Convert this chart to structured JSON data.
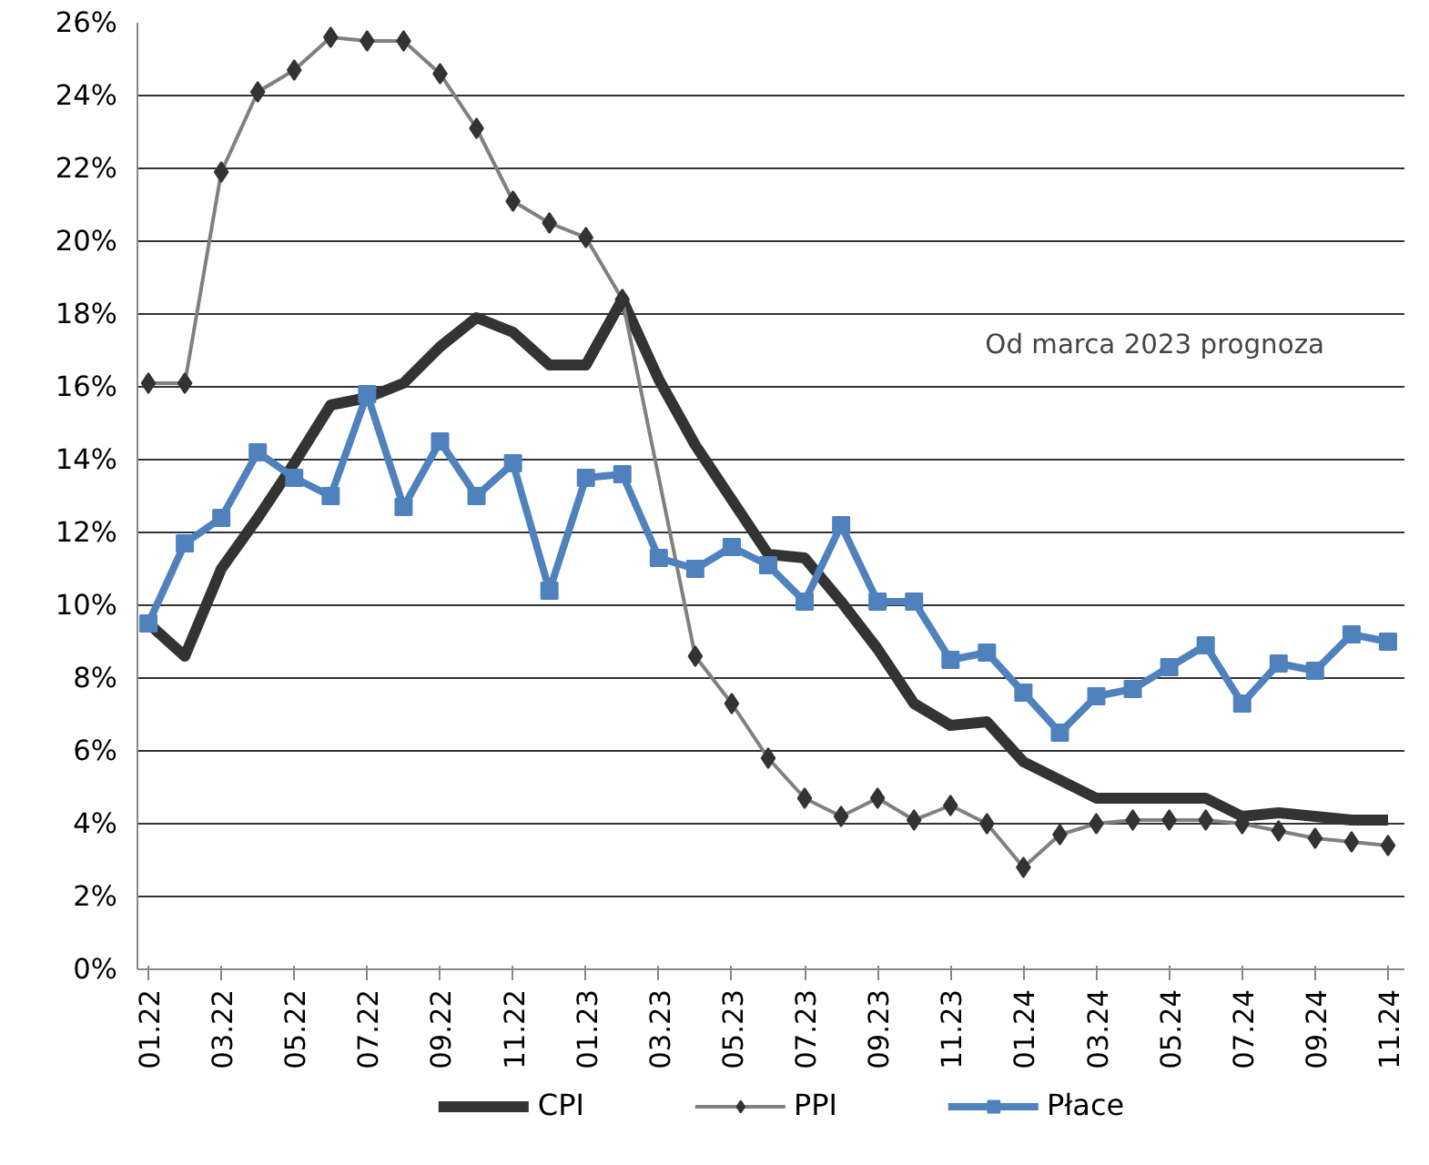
{
  "chart_data": {
    "type": "line",
    "categories": [
      "01.22",
      null,
      "03.22",
      null,
      "05.22",
      null,
      "07.22",
      null,
      "09.22",
      null,
      "11.22",
      null,
      "01.23",
      null,
      "03.23",
      null,
      "05.23",
      null,
      "07.23",
      null,
      "09.23",
      null,
      "11.23",
      null,
      "01.24",
      null,
      "03.24",
      null,
      "05.24",
      null,
      "07.24",
      null,
      "09.24",
      null,
      "11.24"
    ],
    "series": [
      {
        "name": "CPI",
        "color": "#333333",
        "marker": "none",
        "values": [
          9.5,
          8.6,
          11.0,
          12.4,
          13.9,
          15.5,
          15.7,
          16.1,
          17.1,
          17.9,
          17.5,
          16.6,
          16.6,
          18.4,
          16.2,
          14.4,
          12.9,
          11.4,
          11.3,
          10.1,
          8.8,
          7.3,
          6.7,
          6.8,
          5.7,
          5.2,
          4.7,
          4.7,
          4.7,
          4.7,
          4.2,
          4.3,
          4.2,
          4.1,
          4.1
        ]
      },
      {
        "name": "PPI",
        "color": "#808080",
        "marker": "diamond",
        "values": [
          16.1,
          16.1,
          21.9,
          24.1,
          24.7,
          25.6,
          25.5,
          25.5,
          24.6,
          23.1,
          21.1,
          20.5,
          20.1,
          18.4,
          null,
          8.6,
          7.3,
          5.8,
          4.7,
          4.2,
          4.7,
          4.1,
          4.5,
          4.0,
          2.8,
          3.7,
          4.0,
          4.1,
          4.1,
          4.1,
          4.0,
          3.8,
          3.6,
          3.5,
          3.4
        ]
      },
      {
        "name": "Płace",
        "color": "#4f81bd",
        "marker": "square",
        "values": [
          9.5,
          11.7,
          12.4,
          14.2,
          13.5,
          13.0,
          15.8,
          12.7,
          14.5,
          13.0,
          13.9,
          10.4,
          13.5,
          13.6,
          11.3,
          11.0,
          11.6,
          11.1,
          10.1,
          12.2,
          10.1,
          10.1,
          8.5,
          8.7,
          7.6,
          6.5,
          7.5,
          7.7,
          8.3,
          8.9,
          7.3,
          8.4,
          8.2,
          9.2,
          9.0
        ]
      }
    ],
    "ylim": [
      0,
      26
    ],
    "yticks": [
      {
        "value": 0,
        "label": "0%"
      },
      {
        "value": 2,
        "label": "2%"
      },
      {
        "value": 4,
        "label": "4%"
      },
      {
        "value": 6,
        "label": "6%"
      },
      {
        "value": 8,
        "label": "8%"
      },
      {
        "value": 10,
        "label": "10%"
      },
      {
        "value": 12,
        "label": "12%"
      },
      {
        "value": 14,
        "label": "14%"
      },
      {
        "value": 16,
        "label": "16%"
      },
      {
        "value": 18,
        "label": "18%"
      },
      {
        "value": 20,
        "label": "20%"
      },
      {
        "value": 22,
        "label": "22%"
      },
      {
        "value": 24,
        "label": "24%"
      },
      {
        "value": 26,
        "label": "26%"
      }
    ],
    "grid": "y",
    "legend": "bottom",
    "annotations": [
      "Od marca 2023 prognoza"
    ]
  }
}
